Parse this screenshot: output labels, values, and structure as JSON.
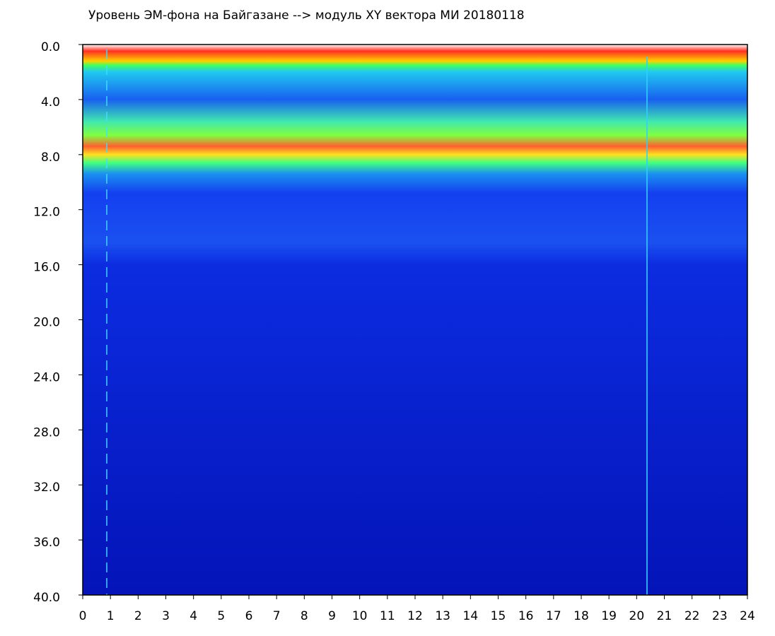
{
  "chart_data": {
    "type": "spectrogram",
    "title": "Уровень ЭМ-фона на Байгазане  -->  модуль XY вектора МИ  20180118",
    "xlim": [
      0,
      24
    ],
    "xticks": [
      0,
      1,
      2,
      3,
      4,
      5,
      6,
      7,
      8,
      9,
      10,
      11,
      12,
      13,
      14,
      15,
      16,
      17,
      18,
      19,
      20,
      21,
      22,
      23,
      24
    ],
    "ylim": [
      0,
      40
    ],
    "y_inverted": true,
    "yticks": [
      {
        "value": 0,
        "label": "0.0"
      },
      {
        "value": 4,
        "label": "4.0"
      },
      {
        "value": 8,
        "label": "8.0"
      },
      {
        "value": 12,
        "label": "12.0"
      },
      {
        "value": 16,
        "label": "16.0"
      },
      {
        "value": 20,
        "label": "20.0"
      },
      {
        "value": 24,
        "label": "24.0"
      },
      {
        "value": 28,
        "label": "28.0"
      },
      {
        "value": 32,
        "label": "32.0"
      },
      {
        "value": 36,
        "label": "36.0"
      },
      {
        "value": 40,
        "label": "40.0"
      }
    ]
  }
}
